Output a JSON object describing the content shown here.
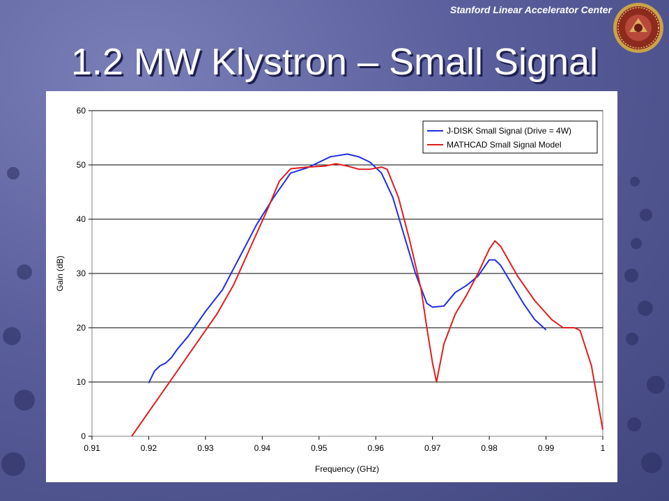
{
  "header": {
    "org": "Stanford Linear Accelerator Center"
  },
  "slide": {
    "title": "1.2 MW Klystron – Small Signal"
  },
  "icons": {
    "seal": "slac-seal-icon"
  },
  "colors": {
    "series1": "#1f2fe0",
    "series2": "#e01d1d",
    "background": "#5a5f9c"
  },
  "chart_data": {
    "type": "line",
    "xlabel": "Frequency (GHz)",
    "ylabel": "Gain (dB)",
    "xlim": [
      0.91,
      1.0
    ],
    "ylim": [
      0,
      60
    ],
    "xticks": [
      "0.91",
      "0.92",
      "0.93",
      "0.94",
      "0.95",
      "0.96",
      "0.97",
      "0.98",
      "0.99",
      "1"
    ],
    "yticks": [
      "0",
      "10",
      "20",
      "30",
      "40",
      "50",
      "60"
    ],
    "grid": "horizontal",
    "legend_position": "top-right",
    "series": [
      {
        "name": "J-DISK Small Signal (Drive = 4W)",
        "color": "#1f2fe0",
        "points": [
          [
            0.92,
            9.8
          ],
          [
            0.921,
            12.0
          ],
          [
            0.922,
            13.0
          ],
          [
            0.923,
            13.5
          ],
          [
            0.924,
            14.5
          ],
          [
            0.925,
            16.0
          ],
          [
            0.927,
            18.5
          ],
          [
            0.93,
            23.0
          ],
          [
            0.933,
            27.0
          ],
          [
            0.936,
            33.0
          ],
          [
            0.939,
            39.0
          ],
          [
            0.942,
            44.0
          ],
          [
            0.945,
            48.5
          ],
          [
            0.948,
            49.5
          ],
          [
            0.95,
            50.5
          ],
          [
            0.952,
            51.5
          ],
          [
            0.955,
            52.0
          ],
          [
            0.957,
            51.5
          ],
          [
            0.959,
            50.5
          ],
          [
            0.961,
            48.5
          ],
          [
            0.963,
            44.0
          ],
          [
            0.965,
            37.0
          ],
          [
            0.967,
            30.0
          ],
          [
            0.969,
            24.5
          ],
          [
            0.97,
            23.8
          ],
          [
            0.972,
            24.0
          ],
          [
            0.974,
            26.5
          ],
          [
            0.976,
            27.8
          ],
          [
            0.978,
            29.5
          ],
          [
            0.979,
            31.0
          ],
          [
            0.98,
            32.5
          ],
          [
            0.981,
            32.5
          ],
          [
            0.982,
            31.5
          ],
          [
            0.984,
            28.0
          ],
          [
            0.986,
            24.5
          ],
          [
            0.988,
            21.5
          ],
          [
            0.99,
            19.6
          ]
        ]
      },
      {
        "name": "MATHCAD Small Signal Model",
        "color": "#e01d1d",
        "points": [
          [
            0.917,
            0.0
          ],
          [
            0.92,
            4.5
          ],
          [
            0.923,
            9.0
          ],
          [
            0.926,
            13.5
          ],
          [
            0.929,
            18.0
          ],
          [
            0.932,
            22.5
          ],
          [
            0.935,
            28.0
          ],
          [
            0.938,
            35.0
          ],
          [
            0.941,
            42.0
          ],
          [
            0.943,
            47.0
          ],
          [
            0.945,
            49.3
          ],
          [
            0.948,
            49.6
          ],
          [
            0.951,
            49.8
          ],
          [
            0.953,
            50.2
          ],
          [
            0.955,
            49.8
          ],
          [
            0.957,
            49.2
          ],
          [
            0.959,
            49.2
          ],
          [
            0.961,
            49.6
          ],
          [
            0.962,
            49.2
          ],
          [
            0.964,
            44.0
          ],
          [
            0.966,
            36.0
          ],
          [
            0.968,
            27.0
          ],
          [
            0.969,
            20.0
          ],
          [
            0.97,
            13.5
          ],
          [
            0.9707,
            10.0
          ],
          [
            0.972,
            17.0
          ],
          [
            0.974,
            22.5
          ],
          [
            0.976,
            26.0
          ],
          [
            0.978,
            30.0
          ],
          [
            0.98,
            34.5
          ],
          [
            0.981,
            36.0
          ],
          [
            0.982,
            35.0
          ],
          [
            0.985,
            29.5
          ],
          [
            0.988,
            25.0
          ],
          [
            0.991,
            21.5
          ],
          [
            0.993,
            20.0
          ],
          [
            0.995,
            20.0
          ],
          [
            0.996,
            19.5
          ],
          [
            0.998,
            13.0
          ],
          [
            1.0,
            1.2
          ]
        ]
      }
    ]
  }
}
